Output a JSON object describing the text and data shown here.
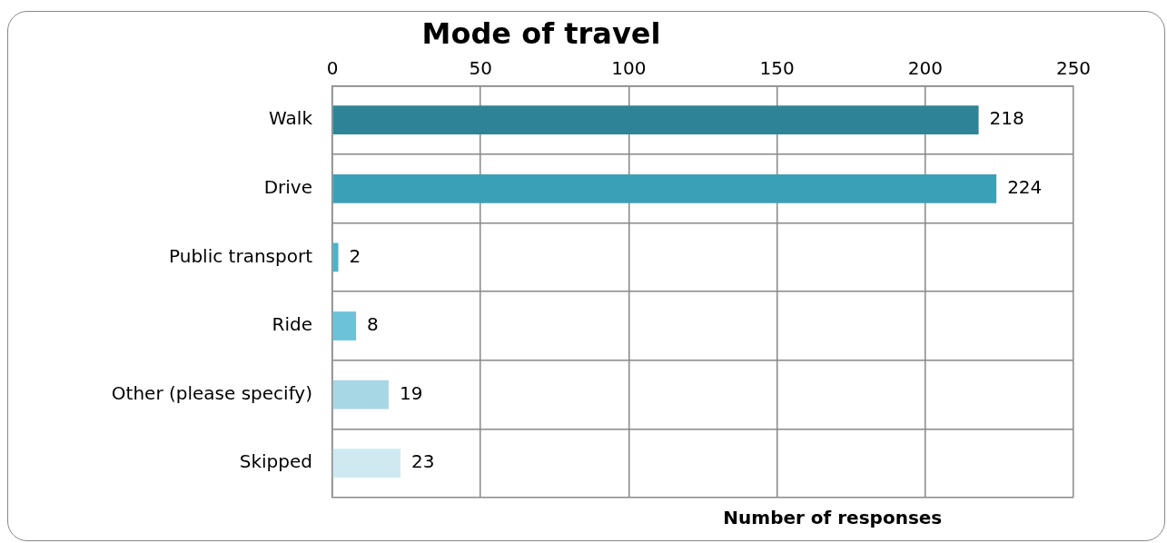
{
  "chart_data": {
    "type": "bar",
    "orientation": "horizontal",
    "title": "Mode of travel",
    "xlabel": "Number of responses",
    "categories": [
      "Walk",
      "Drive",
      "Public transport",
      "Ride",
      "Other (please specify)",
      "Skipped"
    ],
    "values": [
      218,
      224,
      2,
      8,
      19,
      23
    ],
    "colors": [
      "#2f8396",
      "#3aa0b8",
      "#4bb4cc",
      "#6cc2d9",
      "#a7d7e4",
      "#cfe9f1"
    ],
    "xlim": [
      0,
      250
    ],
    "xticks": [
      0,
      50,
      100,
      150,
      200,
      250
    ],
    "grid": true,
    "data_labels": true,
    "legend": false
  }
}
